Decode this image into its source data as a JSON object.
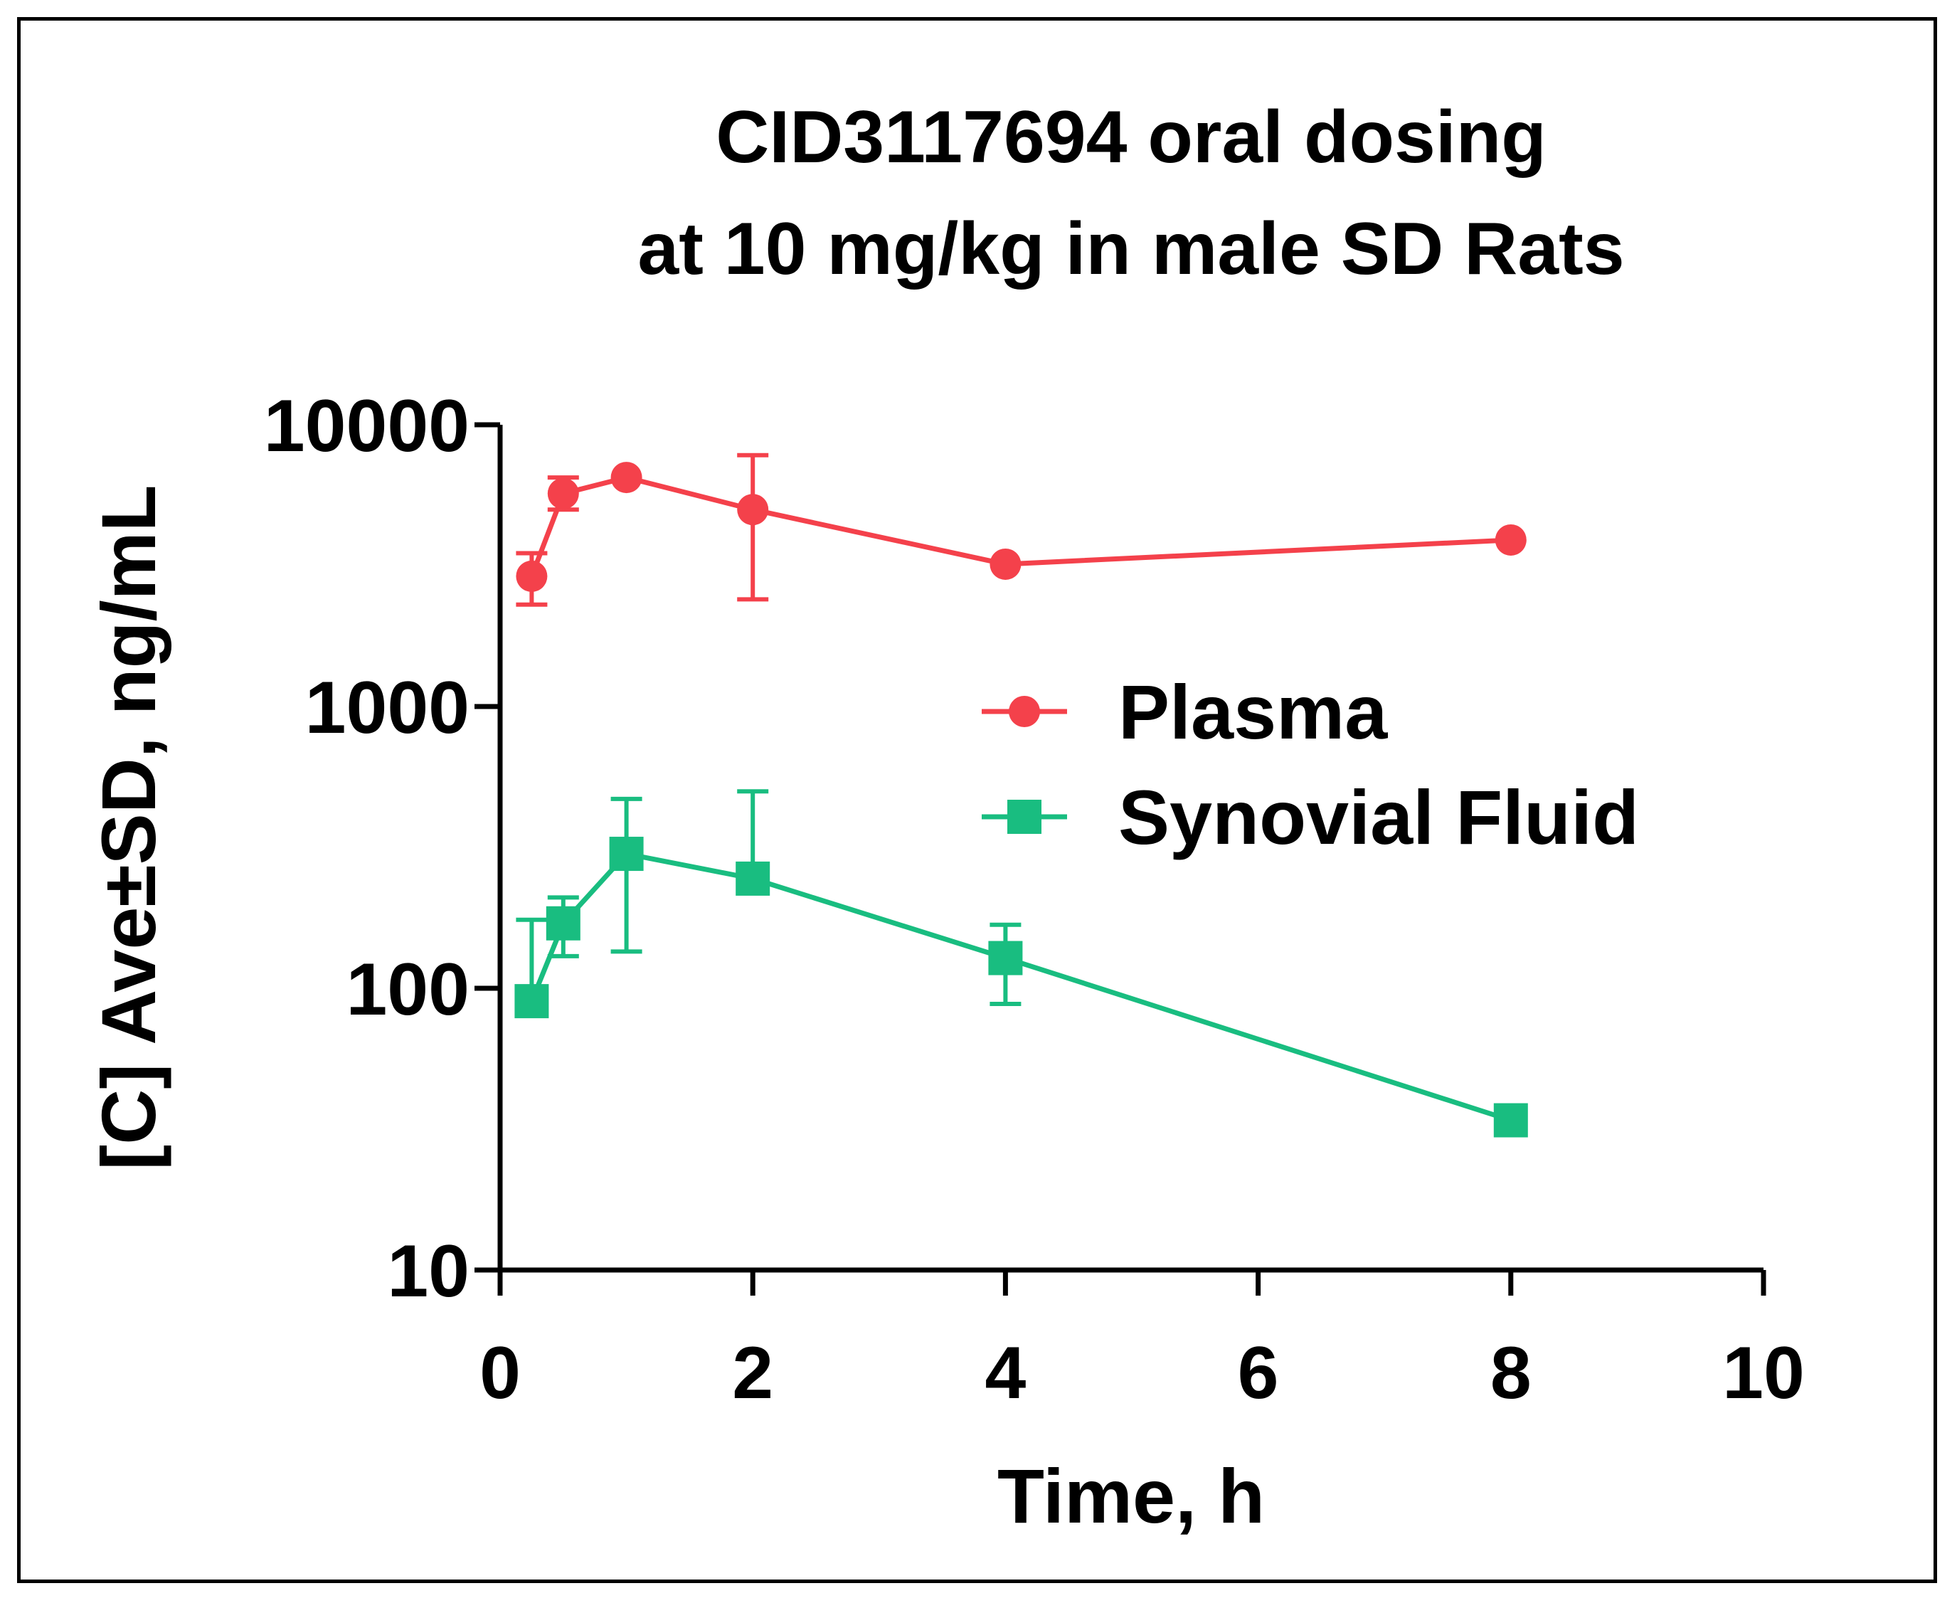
{
  "chart_data": {
    "type": "line",
    "title_lines": [
      "CID3117694 oral dosing",
      "at 10 mg/kg in male SD Rats"
    ],
    "xlabel": "Time, h",
    "ylabel": "[C] Ave±SD, ng/mL",
    "xlim": [
      0,
      10
    ],
    "ylim": [
      10,
      10000
    ],
    "yscale": "log",
    "x_ticks": [
      0,
      2,
      4,
      6,
      8,
      10
    ],
    "y_ticks": [
      10,
      100,
      1000,
      10000
    ],
    "legend_position": "right-center",
    "series": [
      {
        "name": "Plasma",
        "marker": "circle",
        "color": "#f4414b",
        "x": [
          0.25,
          0.5,
          1,
          2,
          4,
          8
        ],
        "y": [
          2900,
          5700,
          6500,
          5000,
          3200,
          3900
        ],
        "err_low": [
          2300,
          5000,
          6500,
          2400,
          3200,
          3900
        ],
        "err_high": [
          3500,
          6500,
          6500,
          7800,
          3200,
          3900
        ]
      },
      {
        "name": "Synovial Fluid",
        "marker": "square",
        "color": "#19bd80",
        "x": [
          0.25,
          0.5,
          1,
          2,
          4,
          8
        ],
        "y": [
          90,
          170,
          300,
          245,
          128,
          34
        ],
        "err_low": [
          90,
          130,
          135,
          245,
          88,
          34
        ],
        "err_high": [
          175,
          210,
          470,
          500,
          168,
          34
        ]
      }
    ]
  }
}
